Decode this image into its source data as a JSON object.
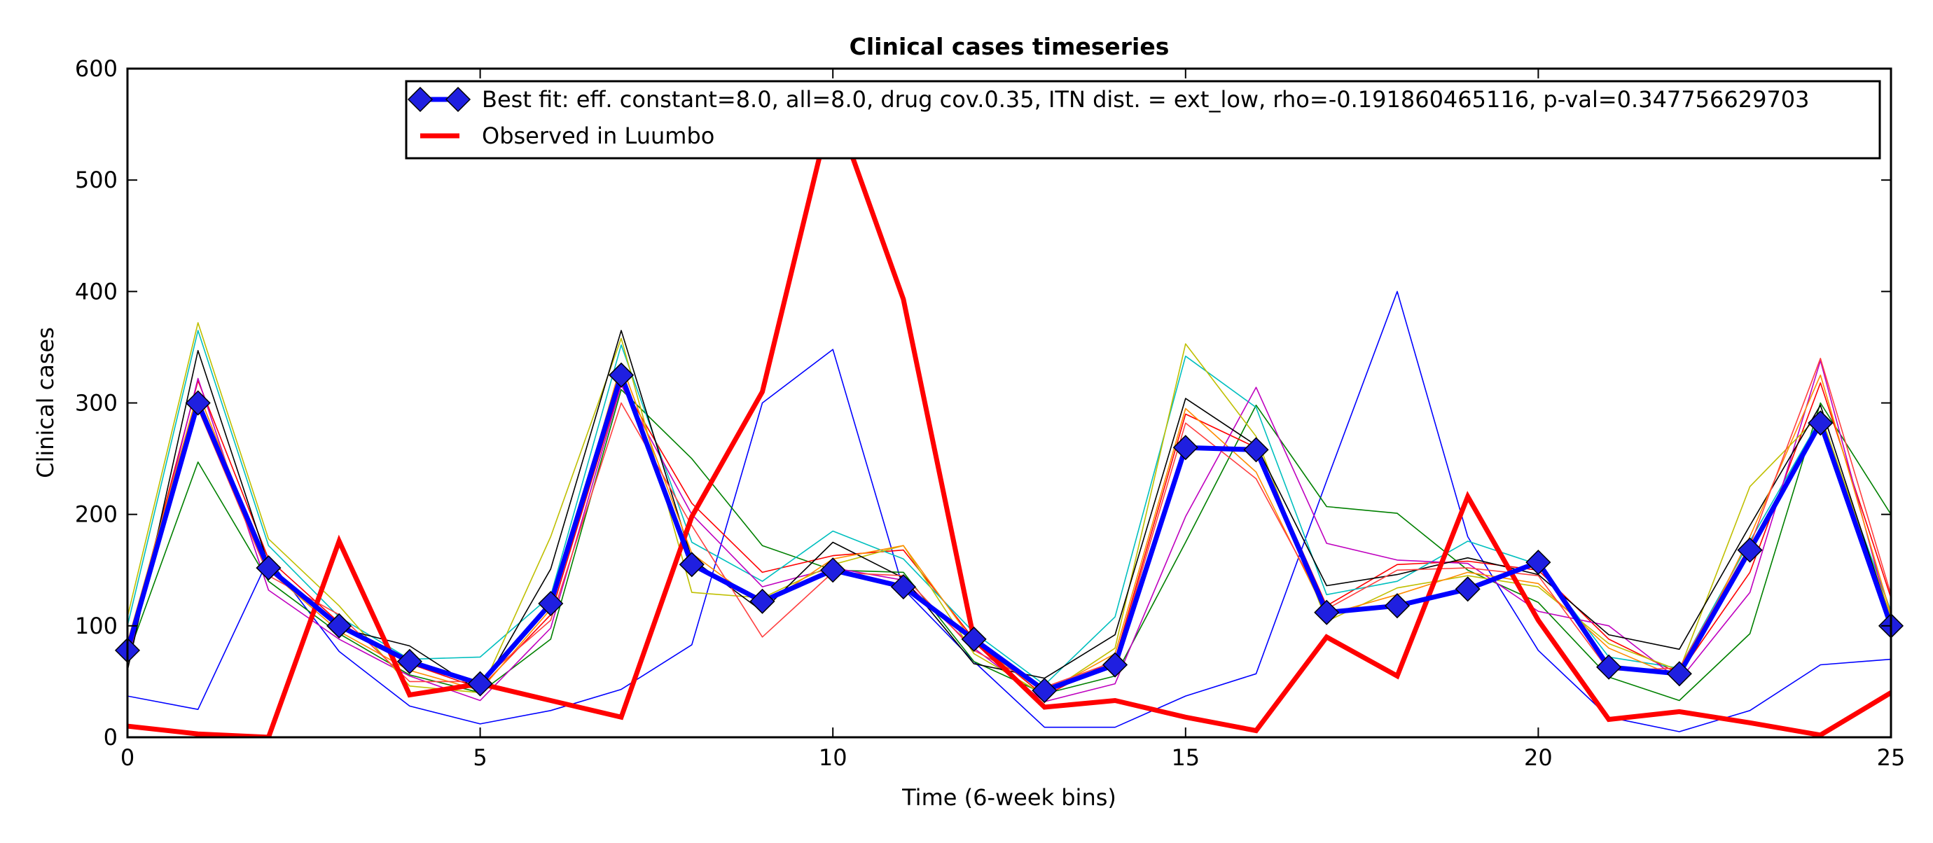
{
  "chart_data": {
    "type": "line",
    "title": "Clinical cases timeseries",
    "xlabel": "Time (6-week bins)",
    "ylabel": "Clinical cases",
    "xlim": [
      0,
      25
    ],
    "ylim": [
      0,
      600
    ],
    "xticks": [
      0,
      5,
      10,
      15,
      20,
      25
    ],
    "yticks": [
      0,
      100,
      200,
      300,
      400,
      500,
      600
    ],
    "grid": false,
    "legend_position": "top-right",
    "x": [
      0,
      1,
      2,
      3,
      4,
      5,
      6,
      7,
      8,
      9,
      10,
      11,
      12,
      13,
      14,
      15,
      16,
      17,
      18,
      19,
      20,
      21,
      22,
      23,
      24,
      25
    ],
    "series": [
      {
        "name": "Best fit: eff. constant=8.0, all=8.0, drug cov.0.35, ITN dist. = ext_low, rho=-0.191860465116, p-val=0.347756629703",
        "role": "best_fit",
        "color": "#0000ff",
        "marker": "diamond",
        "marker_color": "#1f1fe0",
        "values": [
          78,
          300,
          152,
          100,
          68,
          48,
          120,
          325,
          155,
          122,
          150,
          135,
          88,
          42,
          65,
          260,
          258,
          112,
          118,
          133,
          157,
          63,
          57,
          168,
          282,
          100
        ]
      },
      {
        "name": "Observed in Luumbo",
        "role": "observed",
        "color": "#ff0000",
        "values": [
          10,
          3,
          0,
          176,
          38,
          48,
          33,
          18,
          198,
          310,
          570,
          393,
          88,
          27,
          33,
          18,
          6,
          90,
          55,
          216,
          105,
          16,
          23,
          13,
          2,
          40
        ]
      }
    ],
    "ensemble_runs": [
      {
        "color": "#0000ff",
        "values": [
          37,
          25,
          160,
          77,
          28,
          12,
          24,
          43,
          83,
          300,
          348,
          133,
          68,
          9,
          9,
          37,
          57,
          230,
          400,
          180,
          78,
          18,
          5,
          24,
          65,
          70
        ]
      },
      {
        "color": "#008000",
        "values": [
          72,
          247,
          140,
          93,
          56,
          40,
          88,
          312,
          250,
          172,
          150,
          148,
          68,
          39,
          55,
          175,
          298,
          207,
          201,
          150,
          121,
          54,
          33,
          93,
          300,
          200
        ]
      },
      {
        "color": "#ff0000",
        "values": [
          80,
          320,
          160,
          103,
          66,
          44,
          110,
          318,
          210,
          148,
          163,
          168,
          88,
          37,
          70,
          290,
          260,
          118,
          155,
          158,
          150,
          88,
          57,
          148,
          318,
          125
        ]
      },
      {
        "color": "#00bfbf",
        "values": [
          100,
          365,
          172,
          108,
          70,
          72,
          127,
          352,
          175,
          140,
          185,
          160,
          94,
          47,
          108,
          342,
          296,
          128,
          140,
          176,
          155,
          72,
          62,
          176,
          286,
          113
        ]
      },
      {
        "color": "#bf00bf",
        "values": [
          68,
          322,
          132,
          88,
          55,
          33,
          98,
          316,
          200,
          135,
          152,
          141,
          80,
          32,
          48,
          198,
          314,
          174,
          159,
          156,
          113,
          100,
          51,
          130,
          338,
          102
        ]
      },
      {
        "color": "#bfbf00",
        "values": [
          108,
          372,
          178,
          118,
          46,
          40,
          180,
          358,
          130,
          125,
          155,
          172,
          75,
          38,
          80,
          353,
          270,
          104,
          134,
          145,
          135,
          84,
          60,
          225,
          290,
          108
        ]
      },
      {
        "color": "#000000",
        "values": [
          60,
          347,
          155,
          98,
          82,
          41,
          151,
          365,
          160,
          113,
          175,
          143,
          66,
          53,
          92,
          304,
          262,
          136,
          146,
          161,
          146,
          92,
          79,
          190,
          298,
          104
        ]
      },
      {
        "color": "#ff8c00",
        "values": [
          85,
          310,
          150,
          95,
          60,
          42,
          115,
          335,
          165,
          118,
          160,
          172,
          85,
          40,
          75,
          295,
          238,
          110,
          128,
          148,
          138,
          80,
          53,
          180,
          325,
          110
        ]
      },
      {
        "color": "#ff4040",
        "values": [
          75,
          295,
          145,
          110,
          50,
          50,
          105,
          300,
          190,
          90,
          148,
          145,
          78,
          45,
          68,
          282,
          232,
          115,
          150,
          152,
          145,
          60,
          62,
          172,
          340,
          128
        ]
      }
    ]
  }
}
